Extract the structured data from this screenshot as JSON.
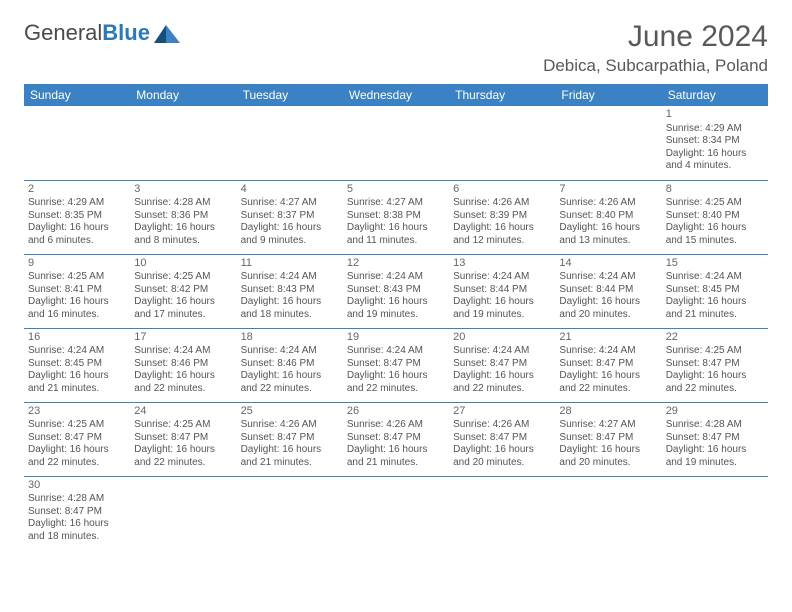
{
  "brand": {
    "part1": "General",
    "part2": "Blue"
  },
  "title": "June 2024",
  "location": "Debica, Subcarpathia, Poland",
  "colors": {
    "header_bg": "#3b82c4",
    "header_text": "#ffffff",
    "border": "#3b82c4",
    "text": "#555555",
    "title": "#595959",
    "brand_gray": "#4a4a4a",
    "brand_blue": "#2a7ab8"
  },
  "weekdays": [
    "Sunday",
    "Monday",
    "Tuesday",
    "Wednesday",
    "Thursday",
    "Friday",
    "Saturday"
  ],
  "first_weekday_index": 6,
  "days": [
    {
      "n": 1,
      "sr": "4:29 AM",
      "ss": "8:34 PM",
      "dl": "16 hours and 4 minutes."
    },
    {
      "n": 2,
      "sr": "4:29 AM",
      "ss": "8:35 PM",
      "dl": "16 hours and 6 minutes."
    },
    {
      "n": 3,
      "sr": "4:28 AM",
      "ss": "8:36 PM",
      "dl": "16 hours and 8 minutes."
    },
    {
      "n": 4,
      "sr": "4:27 AM",
      "ss": "8:37 PM",
      "dl": "16 hours and 9 minutes."
    },
    {
      "n": 5,
      "sr": "4:27 AM",
      "ss": "8:38 PM",
      "dl": "16 hours and 11 minutes."
    },
    {
      "n": 6,
      "sr": "4:26 AM",
      "ss": "8:39 PM",
      "dl": "16 hours and 12 minutes."
    },
    {
      "n": 7,
      "sr": "4:26 AM",
      "ss": "8:40 PM",
      "dl": "16 hours and 13 minutes."
    },
    {
      "n": 8,
      "sr": "4:25 AM",
      "ss": "8:40 PM",
      "dl": "16 hours and 15 minutes."
    },
    {
      "n": 9,
      "sr": "4:25 AM",
      "ss": "8:41 PM",
      "dl": "16 hours and 16 minutes."
    },
    {
      "n": 10,
      "sr": "4:25 AM",
      "ss": "8:42 PM",
      "dl": "16 hours and 17 minutes."
    },
    {
      "n": 11,
      "sr": "4:24 AM",
      "ss": "8:43 PM",
      "dl": "16 hours and 18 minutes."
    },
    {
      "n": 12,
      "sr": "4:24 AM",
      "ss": "8:43 PM",
      "dl": "16 hours and 19 minutes."
    },
    {
      "n": 13,
      "sr": "4:24 AM",
      "ss": "8:44 PM",
      "dl": "16 hours and 19 minutes."
    },
    {
      "n": 14,
      "sr": "4:24 AM",
      "ss": "8:44 PM",
      "dl": "16 hours and 20 minutes."
    },
    {
      "n": 15,
      "sr": "4:24 AM",
      "ss": "8:45 PM",
      "dl": "16 hours and 21 minutes."
    },
    {
      "n": 16,
      "sr": "4:24 AM",
      "ss": "8:45 PM",
      "dl": "16 hours and 21 minutes."
    },
    {
      "n": 17,
      "sr": "4:24 AM",
      "ss": "8:46 PM",
      "dl": "16 hours and 22 minutes."
    },
    {
      "n": 18,
      "sr": "4:24 AM",
      "ss": "8:46 PM",
      "dl": "16 hours and 22 minutes."
    },
    {
      "n": 19,
      "sr": "4:24 AM",
      "ss": "8:47 PM",
      "dl": "16 hours and 22 minutes."
    },
    {
      "n": 20,
      "sr": "4:24 AM",
      "ss": "8:47 PM",
      "dl": "16 hours and 22 minutes."
    },
    {
      "n": 21,
      "sr": "4:24 AM",
      "ss": "8:47 PM",
      "dl": "16 hours and 22 minutes."
    },
    {
      "n": 22,
      "sr": "4:25 AM",
      "ss": "8:47 PM",
      "dl": "16 hours and 22 minutes."
    },
    {
      "n": 23,
      "sr": "4:25 AM",
      "ss": "8:47 PM",
      "dl": "16 hours and 22 minutes."
    },
    {
      "n": 24,
      "sr": "4:25 AM",
      "ss": "8:47 PM",
      "dl": "16 hours and 22 minutes."
    },
    {
      "n": 25,
      "sr": "4:26 AM",
      "ss": "8:47 PM",
      "dl": "16 hours and 21 minutes."
    },
    {
      "n": 26,
      "sr": "4:26 AM",
      "ss": "8:47 PM",
      "dl": "16 hours and 21 minutes."
    },
    {
      "n": 27,
      "sr": "4:26 AM",
      "ss": "8:47 PM",
      "dl": "16 hours and 20 minutes."
    },
    {
      "n": 28,
      "sr": "4:27 AM",
      "ss": "8:47 PM",
      "dl": "16 hours and 20 minutes."
    },
    {
      "n": 29,
      "sr": "4:28 AM",
      "ss": "8:47 PM",
      "dl": "16 hours and 19 minutes."
    },
    {
      "n": 30,
      "sr": "4:28 AM",
      "ss": "8:47 PM",
      "dl": "16 hours and 18 minutes."
    }
  ],
  "labels": {
    "sunrise": "Sunrise:",
    "sunset": "Sunset:",
    "daylight": "Daylight:"
  }
}
